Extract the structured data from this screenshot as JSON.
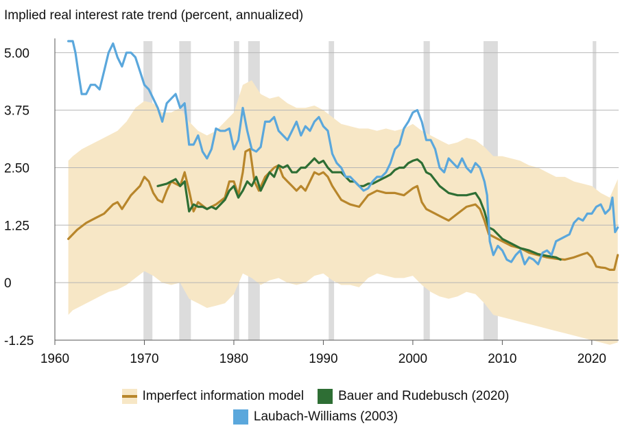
{
  "chart_data": {
    "type": "line",
    "title": "Implied real interest rate trend (percent, annualized)",
    "xlabel": "",
    "ylabel": "",
    "xlim": [
      1960,
      2023
    ],
    "ylim": [
      -1.25,
      5.25
    ],
    "grid": "horizontal",
    "x_ticks": [
      1960,
      1970,
      1980,
      1990,
      2000,
      2010,
      2020
    ],
    "y_ticks": [
      -1.25,
      0,
      1.25,
      2.5,
      3.75,
      5.0
    ],
    "y_tick_labels": [
      "-1.25",
      "0",
      "1.25",
      "2.50",
      "3.75",
      "5.00"
    ],
    "recessions": [
      [
        1969.9,
        1970.9
      ],
      [
        1973.9,
        1975.2
      ],
      [
        1980.0,
        1980.6
      ],
      [
        1981.6,
        1982.9
      ],
      [
        1990.6,
        1991.2
      ],
      [
        2001.2,
        2001.9
      ],
      [
        2007.9,
        2009.5
      ],
      [
        2020.1,
        2020.5
      ]
    ],
    "colors": {
      "band": "#f7e7c6",
      "imperfect": "#b8862b",
      "bauer": "#2e6e34",
      "laubach": "#5aa7dc",
      "recession": "#dcdcdc",
      "grid": "#b5b5b5"
    },
    "series": [
      {
        "name": "Imperfect information model",
        "x": [
          1961.5,
          1962.5,
          1963.5,
          1964.5,
          1965.5,
          1966.5,
          1967.0,
          1967.5,
          1968.5,
          1969.5,
          1970.0,
          1970.5,
          1971.0,
          1971.5,
          1972.0,
          1972.5,
          1973.0,
          1973.5,
          1974.0,
          1974.5,
          1975.0,
          1975.5,
          1976.0,
          1977.0,
          1978.0,
          1979.0,
          1979.5,
          1980.0,
          1980.5,
          1981.0,
          1981.3,
          1981.8,
          1982.3,
          1982.8,
          1983.5,
          1984.5,
          1985.0,
          1985.5,
          1986.0,
          1986.5,
          1987.0,
          1987.5,
          1988.0,
          1988.5,
          1989.0,
          1989.5,
          1990.0,
          1990.5,
          1991.0,
          1991.5,
          1992.0,
          1993.0,
          1994.0,
          1995.0,
          1996.0,
          1997.0,
          1998.0,
          1999.0,
          2000.0,
          2000.5,
          2001.0,
          2001.5,
          2002.0,
          2003.0,
          2004.0,
          2005.0,
          2006.0,
          2007.0,
          2007.5,
          2008.0,
          2008.5,
          2009.0,
          2010.0,
          2011.0,
          2012.0,
          2013.0,
          2014.0,
          2015.0,
          2016.0,
          2017.0,
          2018.0,
          2019.0,
          2019.5,
          2020.0,
          2020.5,
          2021.0,
          2021.5,
          2022.0,
          2022.5,
          2022.9
        ],
        "values": [
          0.95,
          1.15,
          1.3,
          1.4,
          1.5,
          1.7,
          1.75,
          1.6,
          1.9,
          2.1,
          2.3,
          2.2,
          1.95,
          1.8,
          1.75,
          2.0,
          2.2,
          2.15,
          2.1,
          2.4,
          2.0,
          1.55,
          1.75,
          1.6,
          1.7,
          1.85,
          2.2,
          2.2,
          1.9,
          2.4,
          2.85,
          2.9,
          2.2,
          2.0,
          2.3,
          2.5,
          2.55,
          2.3,
          2.2,
          2.1,
          2.0,
          2.1,
          2.0,
          2.2,
          2.4,
          2.35,
          2.4,
          2.3,
          2.1,
          1.95,
          1.8,
          1.7,
          1.65,
          1.9,
          2.0,
          1.95,
          1.95,
          1.9,
          2.05,
          2.1,
          1.75,
          1.6,
          1.55,
          1.45,
          1.35,
          1.5,
          1.65,
          1.7,
          1.6,
          1.35,
          1.05,
          1.0,
          0.9,
          0.8,
          0.75,
          0.65,
          0.6,
          0.55,
          0.52,
          0.5,
          0.55,
          0.62,
          0.65,
          0.55,
          0.35,
          0.33,
          0.32,
          0.28,
          0.28,
          0.6
        ]
      },
      {
        "name": "Bauer and Rudebusch (2020)",
        "x": [
          1971.5,
          1972.5,
          1973.0,
          1973.5,
          1974.0,
          1974.5,
          1975.0,
          1975.5,
          1976.0,
          1976.5,
          1977.0,
          1977.5,
          1978.0,
          1978.5,
          1979.0,
          1979.5,
          1980.0,
          1980.5,
          1981.0,
          1981.5,
          1982.0,
          1982.5,
          1983.0,
          1983.5,
          1984.0,
          1984.5,
          1985.0,
          1985.5,
          1986.0,
          1986.5,
          1987.0,
          1987.5,
          1988.0,
          1988.5,
          1989.0,
          1989.5,
          1990.0,
          1990.5,
          1991.0,
          1991.5,
          1992.0,
          1992.5,
          1993.0,
          1993.5,
          1994.0,
          1994.5,
          1995.0,
          1995.5,
          1996.0,
          1996.5,
          1997.0,
          1997.5,
          1998.0,
          1998.5,
          1999.0,
          1999.5,
          2000.0,
          2000.5,
          2001.0,
          2001.5,
          2002.0,
          2003.0,
          2004.0,
          2005.0,
          2006.0,
          2007.0,
          2007.5,
          2008.0,
          2008.5,
          2009.0,
          2010.0,
          2011.0,
          2012.0,
          2013.0,
          2014.0,
          2015.0,
          2016.0,
          2016.5
        ],
        "values": [
          2.1,
          2.15,
          2.2,
          2.25,
          2.1,
          2.2,
          1.55,
          1.7,
          1.65,
          1.65,
          1.6,
          1.65,
          1.6,
          1.7,
          1.8,
          2.0,
          2.1,
          1.85,
          2.0,
          2.2,
          2.1,
          2.3,
          2.0,
          2.2,
          2.4,
          2.3,
          2.55,
          2.5,
          2.55,
          2.4,
          2.4,
          2.5,
          2.5,
          2.6,
          2.7,
          2.6,
          2.65,
          2.5,
          2.4,
          2.4,
          2.4,
          2.3,
          2.2,
          2.2,
          2.1,
          2.1,
          2.15,
          2.15,
          2.2,
          2.25,
          2.3,
          2.35,
          2.45,
          2.5,
          2.5,
          2.6,
          2.65,
          2.68,
          2.6,
          2.4,
          2.35,
          2.1,
          1.95,
          1.9,
          1.9,
          1.95,
          1.8,
          1.55,
          1.2,
          1.15,
          0.95,
          0.85,
          0.75,
          0.7,
          0.62,
          0.58,
          0.55,
          0.5
        ]
      },
      {
        "name": "Laubach-Williams (2003)",
        "x": [
          1961.5,
          1962.0,
          1962.3,
          1962.6,
          1963.0,
          1963.5,
          1964.0,
          1964.5,
          1965.0,
          1965.5,
          1966.0,
          1966.5,
          1967.0,
          1967.5,
          1968.0,
          1968.5,
          1969.0,
          1969.5,
          1970.0,
          1970.5,
          1971.0,
          1971.5,
          1972.0,
          1972.5,
          1973.0,
          1973.5,
          1974.0,
          1974.5,
          1975.0,
          1975.5,
          1976.0,
          1976.5,
          1977.0,
          1977.5,
          1978.0,
          1978.5,
          1979.0,
          1979.5,
          1980.0,
          1980.5,
          1981.0,
          1981.5,
          1982.0,
          1982.5,
          1983.0,
          1983.5,
          1984.0,
          1984.5,
          1985.0,
          1985.5,
          1986.0,
          1986.5,
          1987.0,
          1987.5,
          1988.0,
          1988.5,
          1989.0,
          1989.5,
          1990.0,
          1990.5,
          1991.0,
          1991.5,
          1992.0,
          1992.5,
          1993.0,
          1993.5,
          1994.0,
          1994.5,
          1995.0,
          1995.5,
          1996.0,
          1996.5,
          1997.0,
          1997.5,
          1998.0,
          1998.5,
          1999.0,
          1999.5,
          2000.0,
          2000.5,
          2001.0,
          2001.5,
          2002.0,
          2002.5,
          2003.0,
          2003.5,
          2004.0,
          2004.5,
          2005.0,
          2005.5,
          2006.0,
          2006.5,
          2007.0,
          2007.5,
          2008.0,
          2008.3,
          2008.6,
          2009.0,
          2009.5,
          2010.0,
          2010.5,
          2011.0,
          2011.5,
          2012.0,
          2012.5,
          2013.0,
          2013.5,
          2014.0,
          2014.5,
          2015.0,
          2015.5,
          2016.0,
          2016.5,
          2017.0,
          2017.5,
          2018.0,
          2018.5,
          2019.0,
          2019.5,
          2020.0,
          2020.5,
          2021.0,
          2021.5,
          2022.0,
          2022.3,
          2022.6,
          2022.9
        ],
        "values": [
          5.25,
          5.25,
          5.0,
          4.6,
          4.1,
          4.1,
          4.3,
          4.3,
          4.2,
          4.6,
          5.0,
          5.2,
          4.9,
          4.7,
          5.0,
          5.0,
          4.9,
          4.6,
          4.3,
          4.2,
          4.0,
          3.8,
          3.5,
          3.9,
          4.0,
          4.1,
          3.8,
          3.9,
          3.0,
          3.0,
          3.2,
          2.85,
          2.7,
          2.9,
          3.35,
          3.3,
          3.3,
          3.35,
          2.9,
          3.1,
          3.8,
          3.3,
          2.9,
          2.85,
          2.95,
          3.5,
          3.5,
          3.6,
          3.3,
          3.2,
          3.1,
          3.3,
          3.5,
          3.2,
          3.4,
          3.3,
          3.5,
          3.6,
          3.4,
          3.3,
          2.8,
          2.6,
          2.5,
          2.3,
          2.3,
          2.2,
          2.1,
          2.0,
          2.05,
          2.2,
          2.3,
          2.3,
          2.4,
          2.6,
          2.9,
          3.0,
          3.35,
          3.5,
          3.7,
          3.75,
          3.5,
          3.1,
          3.1,
          2.9,
          2.5,
          2.4,
          2.7,
          2.6,
          2.5,
          2.7,
          2.5,
          2.4,
          2.6,
          2.5,
          2.2,
          1.9,
          0.9,
          0.6,
          0.8,
          0.7,
          0.5,
          0.45,
          0.6,
          0.7,
          0.4,
          0.55,
          0.5,
          0.4,
          0.65,
          0.7,
          0.6,
          0.9,
          0.95,
          1.0,
          1.05,
          1.3,
          1.4,
          1.35,
          1.5,
          1.5,
          1.65,
          1.7,
          1.5,
          1.6,
          1.85,
          1.1,
          1.2
        ]
      }
    ],
    "band": {
      "name": "Imperfect information model",
      "x": [
        1961.5,
        1962.0,
        1963.0,
        1964.0,
        1965.0,
        1966.0,
        1967.0,
        1968.0,
        1969.0,
        1970.0,
        1971.0,
        1972.0,
        1973.0,
        1974.0,
        1975.0,
        1976.0,
        1977.0,
        1978.0,
        1979.0,
        1980.0,
        1981.0,
        1982.0,
        1983.0,
        1984.0,
        1985.0,
        1986.0,
        1987.0,
        1988.0,
        1989.0,
        1990.0,
        1991.0,
        1992.0,
        1993.0,
        1994.0,
        1995.0,
        1996.0,
        1997.0,
        1998.0,
        1999.0,
        2000.0,
        2001.0,
        2002.0,
        2003.0,
        2004.0,
        2005.0,
        2006.0,
        2007.0,
        2008.0,
        2009.0,
        2010.0,
        2011.0,
        2012.0,
        2013.0,
        2014.0,
        2015.0,
        2016.0,
        2017.0,
        2018.0,
        2019.0,
        2020.0,
        2021.0,
        2022.0,
        2022.9
      ],
      "upper": [
        2.65,
        2.75,
        2.9,
        3.0,
        3.1,
        3.2,
        3.3,
        3.5,
        3.8,
        3.95,
        3.9,
        3.7,
        3.7,
        3.8,
        3.5,
        3.3,
        3.2,
        3.3,
        3.5,
        3.7,
        4.3,
        4.4,
        4.1,
        4.0,
        4.05,
        3.9,
        3.8,
        3.8,
        3.85,
        3.75,
        3.6,
        3.45,
        3.4,
        3.35,
        3.35,
        3.3,
        3.35,
        3.3,
        3.35,
        3.45,
        3.3,
        3.2,
        3.1,
        3.0,
        3.05,
        3.15,
        3.1,
        2.95,
        2.75,
        2.75,
        2.7,
        2.65,
        2.55,
        2.5,
        2.4,
        2.3,
        2.3,
        2.2,
        2.15,
        2.1,
        1.95,
        1.85,
        2.25
      ],
      "lower": [
        -0.7,
        -0.6,
        -0.5,
        -0.4,
        -0.3,
        -0.2,
        -0.15,
        -0.05,
        0.1,
        0.25,
        0.15,
        0.0,
        -0.05,
        0.0,
        -0.35,
        -0.45,
        -0.55,
        -0.5,
        -0.45,
        -0.25,
        0.2,
        0.1,
        -0.05,
        0.05,
        0.1,
        0.0,
        -0.05,
        0.0,
        0.15,
        0.2,
        0.05,
        -0.05,
        -0.05,
        -0.1,
        0.1,
        0.2,
        0.15,
        0.1,
        0.1,
        0.15,
        -0.05,
        -0.2,
        -0.3,
        -0.35,
        -0.3,
        -0.2,
        -0.25,
        -0.45,
        -0.7,
        -0.75,
        -0.8,
        -0.85,
        -0.9,
        -0.95,
        -1.0,
        -1.05,
        -1.1,
        -1.15,
        -1.2,
        -1.25,
        -1.3,
        -1.35,
        -1.3
      ]
    }
  }
}
